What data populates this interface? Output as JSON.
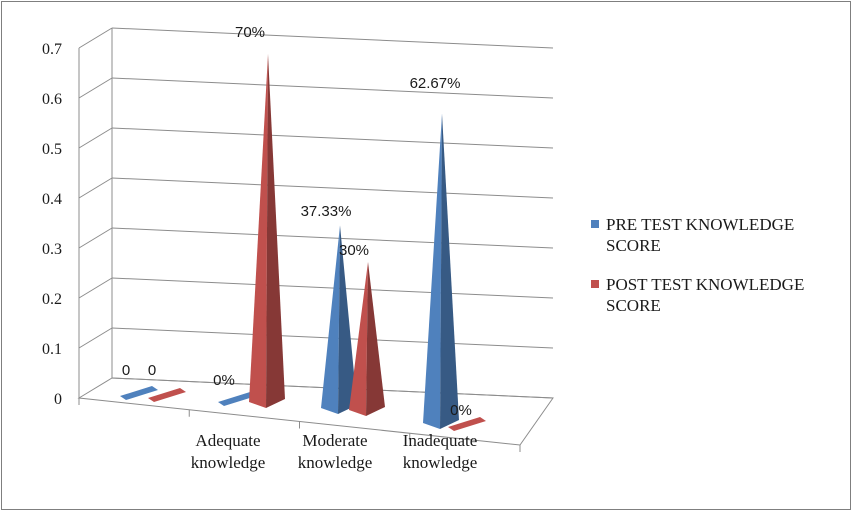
{
  "chart_data": {
    "type": "bar",
    "style": "3d-cone",
    "categories": [
      "",
      "Adequate knowledge",
      "Moderate knowledge",
      "Inadequate knowledge"
    ],
    "category_lines": [
      [
        ""
      ],
      [
        "Adequate",
        "knowledge"
      ],
      [
        "Moderate",
        "knowledge"
      ],
      [
        "Inadequate",
        "knowledge"
      ]
    ],
    "series": [
      {
        "name": "PRE TEST  KNOWLEDGE SCORE",
        "legend_lines": [
          "PRE TEST  KNOWLEDGE",
          "SCORE"
        ],
        "color": "#4f81bd",
        "values": [
          0,
          0,
          0.3733,
          0.6267
        ],
        "labels": [
          "0",
          "0%",
          "37.33%",
          "62.67%"
        ]
      },
      {
        "name": "POST TEST KNOWLEDGE SCORE",
        "legend_lines": [
          "POST TEST KNOWLEDGE",
          "SCORE"
        ],
        "color": "#c0504d",
        "values": [
          0,
          0.7,
          0.3,
          0
        ],
        "labels": [
          "0",
          "70%",
          "30%",
          "0%"
        ]
      }
    ],
    "y_ticks": [
      "0",
      "0.1",
      "0.2",
      "0.3",
      "0.4",
      "0.5",
      "0.6",
      "0.7"
    ],
    "ylim": [
      0,
      0.7
    ],
    "grid": true,
    "legend_position": "right"
  }
}
